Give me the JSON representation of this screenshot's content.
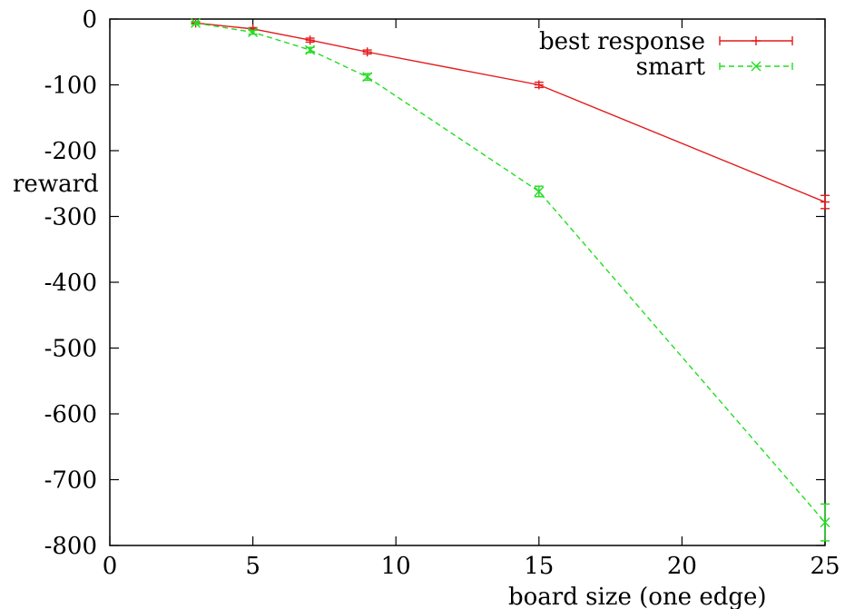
{
  "chart_data": {
    "type": "line",
    "title": "",
    "xlabel": "board size (one edge)",
    "ylabel": "reward",
    "xlim": [
      0,
      25
    ],
    "ylim": [
      -800,
      0
    ],
    "xticks": [
      0,
      5,
      10,
      15,
      20,
      25
    ],
    "yticks": [
      0,
      -100,
      -200,
      -300,
      -400,
      -500,
      -600,
      -700,
      -800
    ],
    "grid": false,
    "legend": "top-right",
    "x": [
      3,
      5,
      7,
      9,
      15,
      25
    ],
    "series": [
      {
        "name": "best response",
        "color": "#e41a1c",
        "marker": "plus",
        "dash": "solid",
        "values": [
          -6,
          -15,
          -32,
          -50,
          -100,
          -278
        ],
        "errors": [
          2,
          2,
          3,
          3,
          4,
          10
        ]
      },
      {
        "name": "smart",
        "color": "#22dd22",
        "marker": "cross",
        "dash": "dashed",
        "values": [
          -6,
          -20,
          -47,
          -88,
          -262,
          -765
        ],
        "errors": [
          2,
          3,
          4,
          5,
          8,
          28
        ]
      }
    ]
  }
}
